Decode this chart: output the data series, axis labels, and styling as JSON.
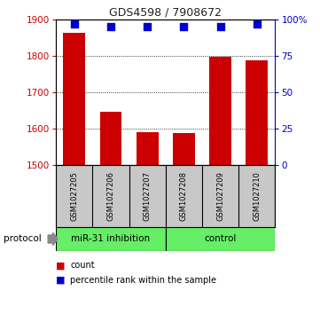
{
  "title": "GDS4598 / 7908672",
  "samples": [
    "GSM1027205",
    "GSM1027206",
    "GSM1027207",
    "GSM1027208",
    "GSM1027209",
    "GSM1027210"
  ],
  "counts": [
    1862,
    1645,
    1590,
    1588,
    1797,
    1787
  ],
  "percentiles": [
    97,
    95,
    95,
    95,
    95,
    97
  ],
  "ylim_left": [
    1500,
    1900
  ],
  "ylim_right": [
    0,
    100
  ],
  "yticks_left": [
    1500,
    1600,
    1700,
    1800,
    1900
  ],
  "yticks_right": [
    0,
    25,
    50,
    75,
    100
  ],
  "bar_color": "#cc0000",
  "dot_color": "#0000cc",
  "grid_color": "#000000",
  "protocol_label": "protocol",
  "legend_count_label": "count",
  "legend_pct_label": "percentile rank within the sample",
  "bar_width": 0.6,
  "dot_size": 35,
  "bg_color": "#ffffff",
  "plot_bg": "#ffffff",
  "label_area_color": "#c8c8c8",
  "group_area_color": "#66ee66",
  "group1_label": "miR-31 inhibition",
  "group2_label": "control",
  "title_fontsize": 9,
  "tick_fontsize": 7.5,
  "sample_fontsize": 6,
  "group_fontsize": 7.5,
  "legend_fontsize": 7
}
